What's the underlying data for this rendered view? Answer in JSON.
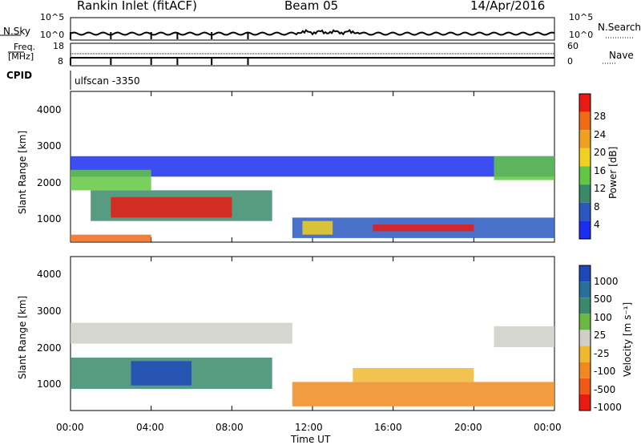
{
  "header": {
    "title": "Rankin Inlet (fitACF)",
    "beam": "Beam 05",
    "date": "14/Apr/2016"
  },
  "noise_panel": {
    "left_label": "N.Sky",
    "right_label": "N.Search",
    "left_ticks": [
      "10^5",
      "10^0"
    ],
    "right_ticks": [
      "10^5",
      "10^0"
    ]
  },
  "freq_panel": {
    "label_line1": "Freq.",
    "label_line2": "[MHz]",
    "right_label": "Nave",
    "left_ticks": [
      "18",
      "8"
    ],
    "right_ticks": [
      "60",
      "0"
    ]
  },
  "cpid": {
    "label": "CPID",
    "value": "ulfscan -3350"
  },
  "chart_data": [
    {
      "type": "heatmap",
      "name": "power",
      "ylabel": "Slant Range [km]",
      "ylim": [
        180,
        4600
      ],
      "yticks": [
        "1000",
        "2000",
        "3000",
        "4000"
      ],
      "xlim": [
        0,
        24
      ],
      "colorbar_label": "Power [dB]",
      "colorbar_ticks": [
        "4",
        "8",
        "12",
        "16",
        "20",
        "24",
        "28"
      ],
      "colors": [
        "#1a2ef0",
        "#2a58c0",
        "#3a8a6a",
        "#62c843",
        "#f0d020",
        "#f0a020",
        "#f06a18",
        "#e81a12"
      ]
    },
    {
      "type": "heatmap",
      "name": "velocity",
      "ylabel": "Slant Range [km]",
      "ylim": [
        180,
        4600
      ],
      "yticks": [
        "1000",
        "2000",
        "3000",
        "4000"
      ],
      "xlim": [
        0,
        24
      ],
      "xlabel": "Time UT",
      "xticks": [
        "00:00",
        "04:00",
        "08:00",
        "12:00",
        "16:00",
        "20:00",
        "00:00"
      ],
      "colorbar_label": "Velocity [m s⁻¹]",
      "colorbar_ticks": [
        "1000",
        "500",
        "100",
        "25",
        "-25",
        "-100",
        "-500",
        "-1000"
      ],
      "colors": [
        "#1e48b8",
        "#2a6e9a",
        "#3a8a6a",
        "#6ab840",
        "#cfcfc8",
        "#f0b830",
        "#f08a20",
        "#f05818",
        "#e81a12"
      ]
    }
  ]
}
